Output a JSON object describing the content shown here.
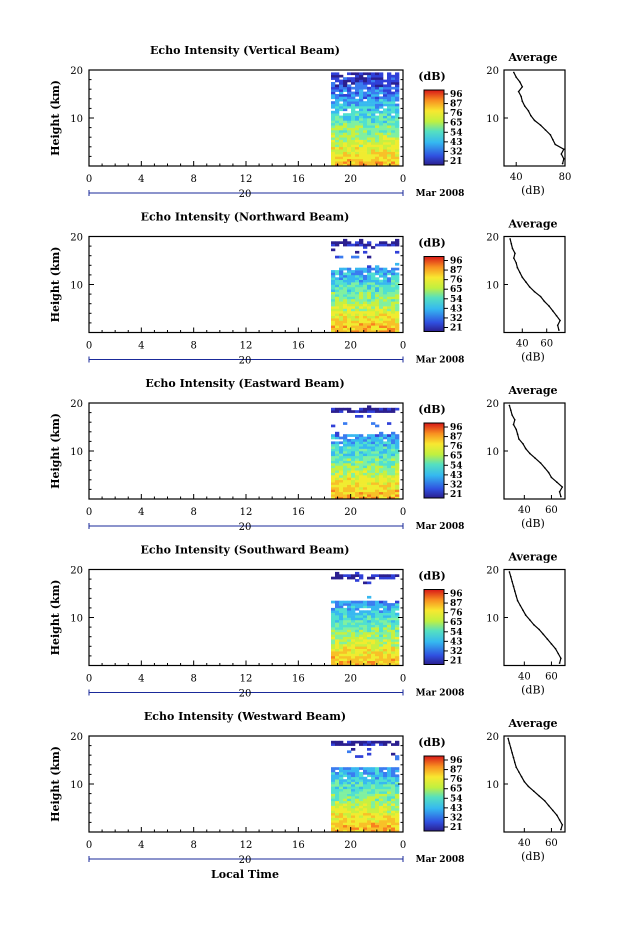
{
  "figure": {
    "date_label": "Mar 2008",
    "xlabel": "Local Time",
    "colorbar_unit": "(dB)",
    "colorbar_ticks": [
      "96",
      "87",
      "76",
      "65",
      "54",
      "43",
      "32",
      "21"
    ],
    "average_title": "Average",
    "average_xlabel": "(dB)"
  },
  "chart_data": [
    {
      "type": "heatmap",
      "title": "Echo Intensity (Vertical Beam)",
      "ylabel": "Height (km)",
      "xlim": [
        0,
        24
      ],
      "ylim": [
        0,
        20
      ],
      "xticks": [
        "0",
        "4",
        "8",
        "12",
        "16",
        "20",
        "0"
      ],
      "yticks": [
        10,
        20
      ],
      "day_label": "20",
      "data_start_hour": 18.5,
      "average_profile": {
        "xlabel": "(dB)",
        "xlim": [
          30,
          80
        ],
        "xticks": [
          40,
          80
        ],
        "ylim": [
          0,
          20
        ],
        "height_km": [
          0.5,
          1.5,
          2.5,
          3.5,
          4.5,
          5.5,
          6.5,
          7.5,
          8.5,
          9.5,
          10.5,
          11.5,
          12.5,
          13.5,
          14.5,
          15.5,
          16.5,
          17.5,
          18.5,
          19.5
        ],
        "intensity_db": [
          78,
          79,
          77,
          79,
          72,
          70,
          68,
          64,
          60,
          55,
          52,
          50,
          47,
          45,
          44,
          42,
          45,
          43,
          40,
          38
        ]
      }
    },
    {
      "type": "heatmap",
      "title": "Echo Intensity (Northward Beam)",
      "ylabel": "Height (km)",
      "xlim": [
        0,
        24
      ],
      "ylim": [
        0,
        20
      ],
      "xticks": [
        "0",
        "4",
        "8",
        "12",
        "16",
        "20",
        "0"
      ],
      "yticks": [
        10,
        20
      ],
      "day_label": "20",
      "data_start_hour": 18.5,
      "average_profile": {
        "xlabel": "(dB)",
        "xlim": [
          25,
          75
        ],
        "xticks": [
          40,
          60
        ],
        "ylim": [
          0,
          20
        ],
        "height_km": [
          0.5,
          1.5,
          2.5,
          3.5,
          4.5,
          5.5,
          6.5,
          7.5,
          8.5,
          9.5,
          10.5,
          11.5,
          12.5,
          13.5,
          14.5,
          15.5,
          16.5,
          17.5,
          18.5,
          19.5
        ],
        "intensity_db": [
          70,
          69,
          71,
          68,
          65,
          62,
          58,
          55,
          50,
          46,
          43,
          40,
          38,
          36,
          35,
          33,
          34,
          32,
          31,
          30
        ]
      }
    },
    {
      "type": "heatmap",
      "title": "Echo Intensity (Eastward Beam)",
      "ylabel": "Height (km)",
      "xlim": [
        0,
        24
      ],
      "ylim": [
        0,
        20
      ],
      "xticks": [
        "0",
        "4",
        "8",
        "12",
        "16",
        "20",
        "0"
      ],
      "yticks": [
        10,
        20
      ],
      "day_label": "20",
      "data_start_hour": 18.5,
      "average_profile": {
        "xlabel": "(dB)",
        "xlim": [
          25,
          70
        ],
        "xticks": [
          40,
          60
        ],
        "ylim": [
          0,
          20
        ],
        "height_km": [
          0.5,
          1.5,
          2.5,
          3.5,
          4.5,
          5.5,
          6.5,
          7.5,
          8.5,
          9.5,
          10.5,
          11.5,
          12.5,
          13.5,
          14.5,
          15.5,
          16.5,
          17.5,
          18.5,
          19.5
        ],
        "intensity_db": [
          67,
          66,
          68,
          64,
          60,
          58,
          55,
          52,
          48,
          44,
          41,
          39,
          36,
          35,
          34,
          32,
          33,
          31,
          30,
          29
        ]
      }
    },
    {
      "type": "heatmap",
      "title": "Echo Intensity (Southward Beam)",
      "ylabel": "Height (km)",
      "xlim": [
        0,
        24
      ],
      "ylim": [
        0,
        20
      ],
      "xticks": [
        "0",
        "4",
        "8",
        "12",
        "16",
        "20",
        "0"
      ],
      "yticks": [
        10,
        20
      ],
      "day_label": "20",
      "data_start_hour": 18.5,
      "average_profile": {
        "xlabel": "(dB)",
        "xlim": [
          25,
          70
        ],
        "xticks": [
          40,
          60
        ],
        "ylim": [
          0,
          20
        ],
        "height_km": [
          0.5,
          1.5,
          2.5,
          3.5,
          4.5,
          5.5,
          6.5,
          7.5,
          8.5,
          9.5,
          10.5,
          11.5,
          12.5,
          13.5,
          14.5,
          15.5,
          16.5,
          17.5,
          18.5,
          19.5
        ],
        "intensity_db": [
          66,
          67,
          65,
          63,
          60,
          57,
          54,
          51,
          47,
          44,
          41,
          39,
          37,
          35,
          34,
          33,
          32,
          31,
          30,
          29
        ]
      }
    },
    {
      "type": "heatmap",
      "title": "Echo Intensity (Westward Beam)",
      "ylabel": "Height (km)",
      "xlim": [
        0,
        24
      ],
      "ylim": [
        0,
        20
      ],
      "xticks": [
        "0",
        "4",
        "8",
        "12",
        "16",
        "20",
        "0"
      ],
      "yticks": [
        10,
        20
      ],
      "day_label": "20",
      "data_start_hour": 18.5,
      "average_profile": {
        "xlabel": "(dB)",
        "xlim": [
          25,
          70
        ],
        "xticks": [
          40,
          60
        ],
        "ylim": [
          0,
          20
        ],
        "height_km": [
          0.5,
          1.5,
          2.5,
          3.5,
          4.5,
          5.5,
          6.5,
          7.5,
          8.5,
          9.5,
          10.5,
          11.5,
          12.5,
          13.5,
          14.5,
          15.5,
          16.5,
          17.5,
          18.5,
          19.5
        ],
        "intensity_db": [
          67,
          68,
          66,
          64,
          61,
          58,
          55,
          51,
          47,
          43,
          40,
          38,
          36,
          34,
          33,
          32,
          31,
          30,
          29,
          28
        ]
      }
    }
  ]
}
